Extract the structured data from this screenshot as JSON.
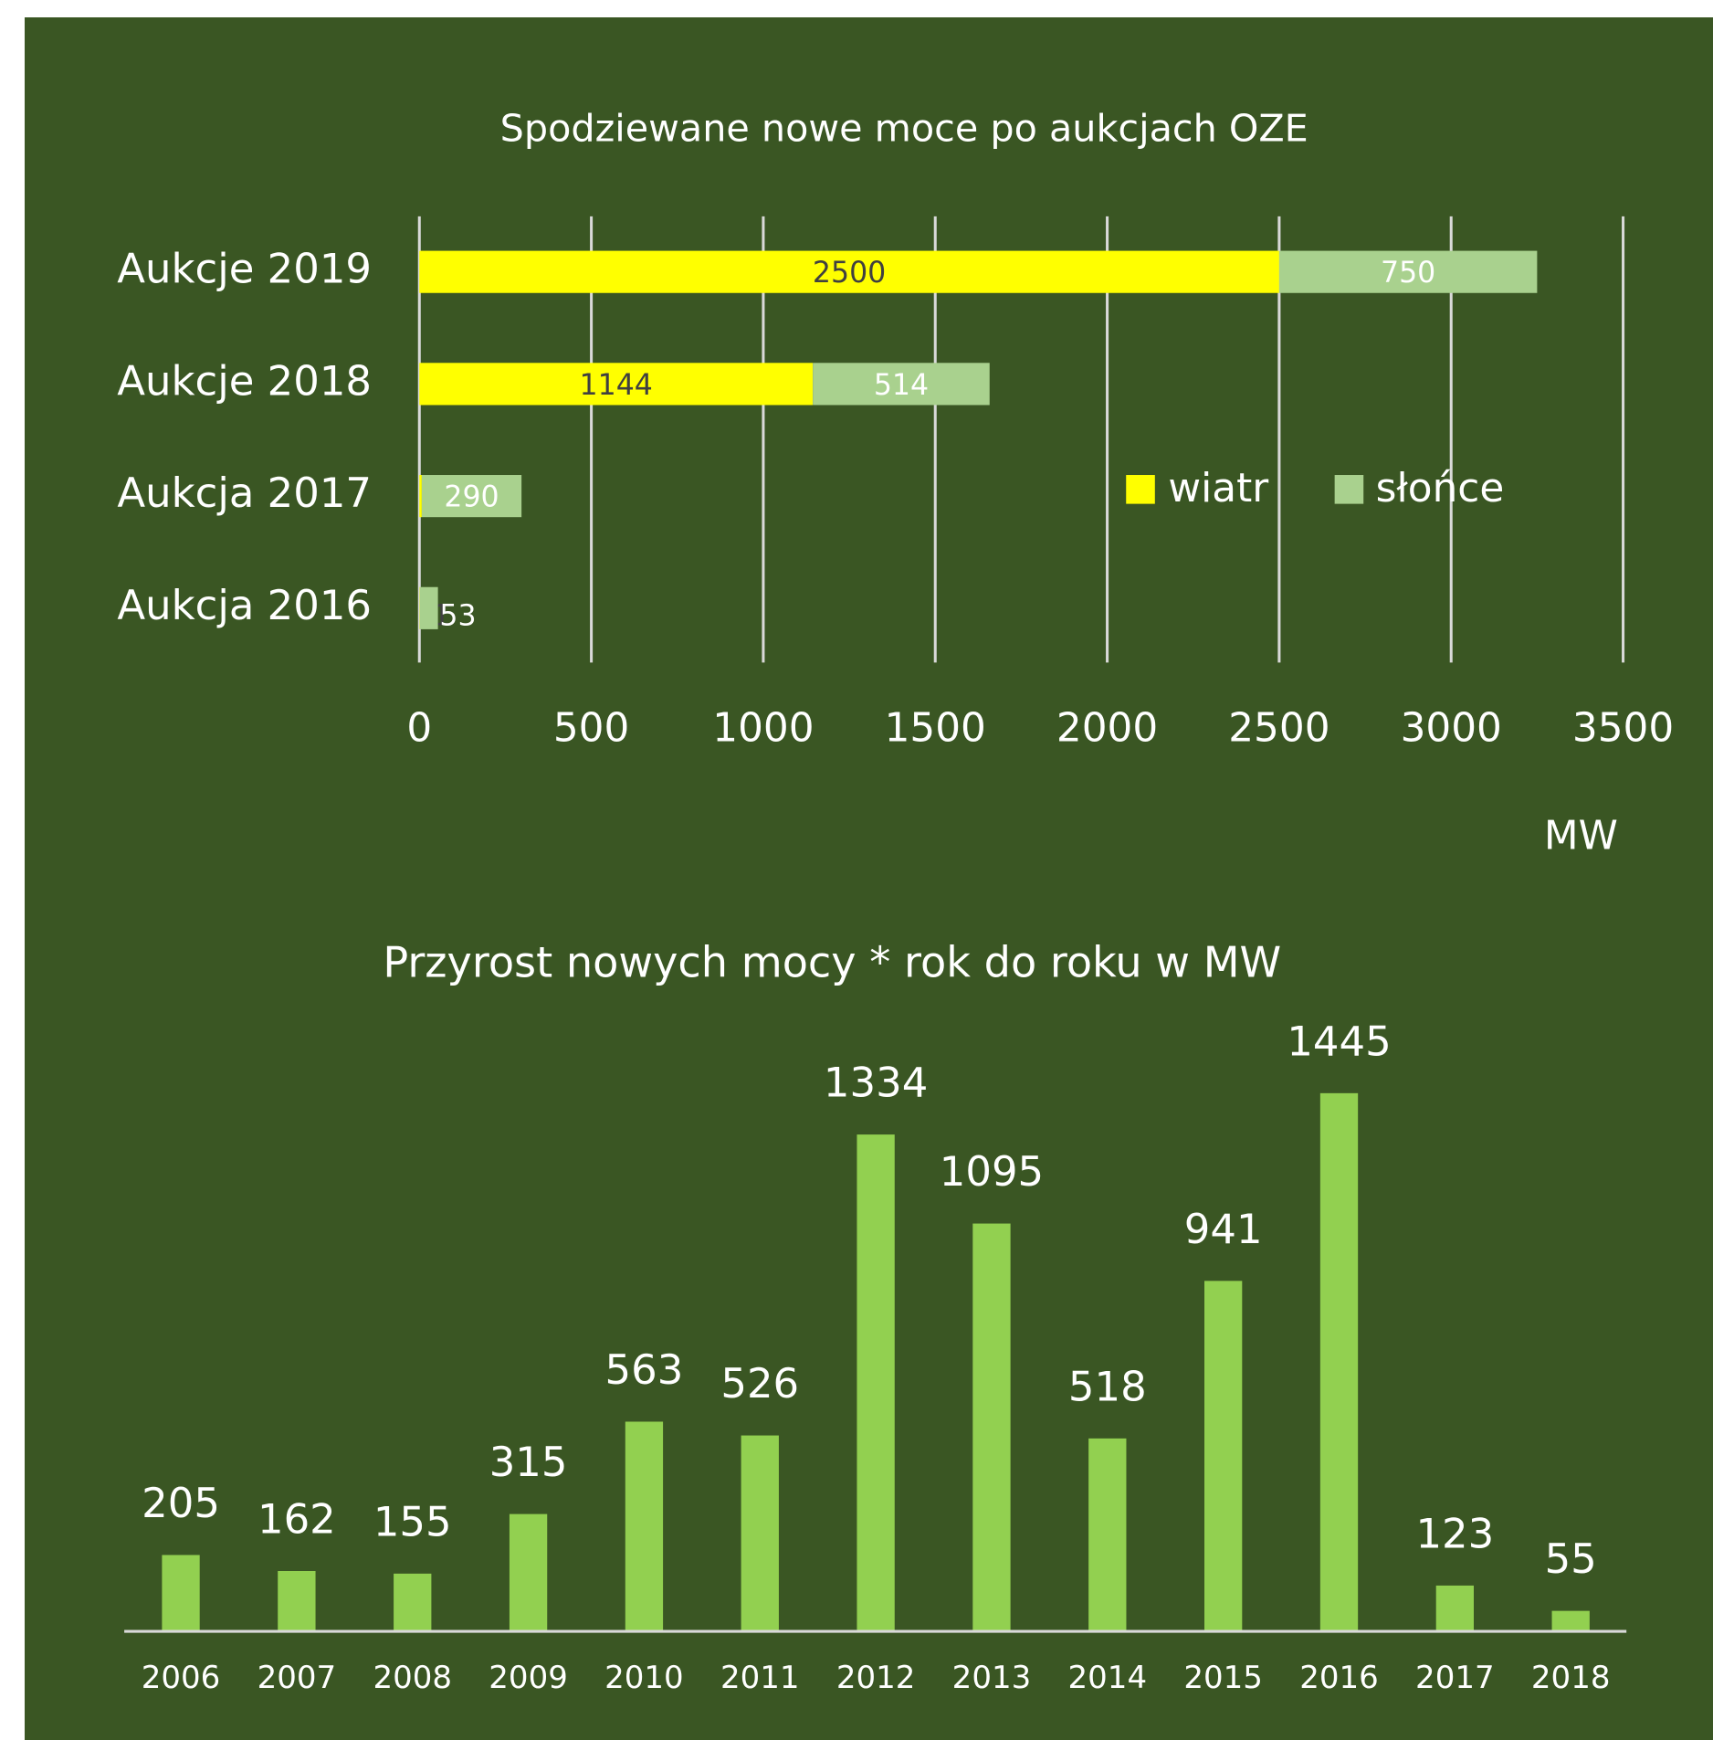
{
  "chart_data": [
    {
      "type": "hbar-stacked",
      "title": "Spodziewane nowe moce po aukcjach OZE",
      "categories": [
        "Aukcje 2019",
        "Aukcje 2018",
        "Aukcja 2017",
        "Aukcja 2016"
      ],
      "series": [
        {
          "name": "wiatr",
          "color": "#ffff00",
          "values": [
            2500,
            1144,
            7,
            1
          ]
        },
        {
          "name": "słońce",
          "color": "#a9d18e",
          "values": [
            750,
            514,
            290,
            53
          ]
        }
      ],
      "xlim": [
        0,
        3500
      ],
      "xticks": [
        0,
        500,
        1000,
        1500,
        2000,
        2500,
        3000,
        3500
      ],
      "x_label": "MW",
      "grid": true,
      "legend": "right"
    },
    {
      "type": "bar",
      "title": "Przyrost nowych mocy * rok do roku w MW",
      "categories": [
        "2006",
        "2007",
        "2008",
        "2009",
        "2010",
        "2011",
        "2012",
        "2013",
        "2014",
        "2015",
        "2016",
        "2017",
        "2018"
      ],
      "values": [
        205,
        162,
        155,
        315,
        563,
        526,
        1334,
        1095,
        518,
        941,
        1445,
        123,
        55
      ],
      "color": "#92d050",
      "ylim": [
        0,
        1600
      ]
    }
  ]
}
